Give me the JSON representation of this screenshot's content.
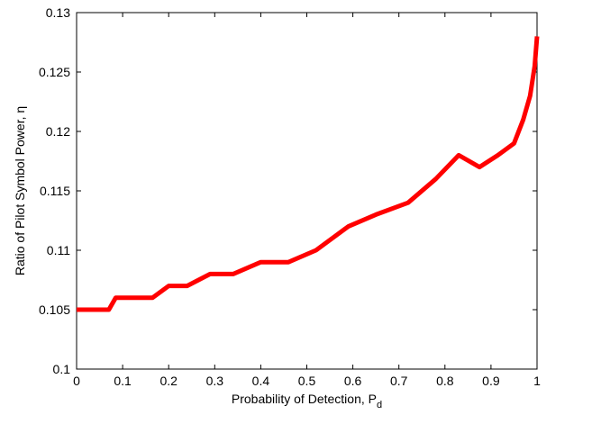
{
  "chart_data": {
    "type": "line",
    "xlabel": "Probability of Detection, P",
    "xlabel_subscript": "d",
    "ylabel": "Ratio of Pilot Symbol Power, η",
    "xlim": [
      0,
      1
    ],
    "ylim": [
      0.1,
      0.13
    ],
    "x_ticks": [
      0,
      0.1,
      0.2,
      0.3,
      0.4,
      0.5,
      0.6,
      0.7,
      0.8,
      0.9,
      1
    ],
    "x_tick_labels": [
      "0",
      "0.1",
      "0.2",
      "0.3",
      "0.4",
      "0.5",
      "0.6",
      "0.7",
      "0.8",
      "0.9",
      "1"
    ],
    "y_ticks": [
      0.1,
      0.105,
      0.11,
      0.115,
      0.12,
      0.125,
      0.13
    ],
    "y_tick_labels": [
      "0.1",
      "0.105",
      "0.11",
      "0.115",
      "0.12",
      "0.125",
      "0.13"
    ],
    "grid": false,
    "legend": null,
    "series": [
      {
        "color": "#ff0000",
        "x": [
          0,
          0.07,
          0.085,
          0.165,
          0.2,
          0.24,
          0.29,
          0.34,
          0.4,
          0.46,
          0.52,
          0.59,
          0.65,
          0.72,
          0.78,
          0.83,
          0.875,
          0.915,
          0.95,
          0.97,
          0.985,
          0.995,
          1.0
        ],
        "y": [
          0.105,
          0.105,
          0.106,
          0.106,
          0.107,
          0.107,
          0.108,
          0.108,
          0.109,
          0.109,
          0.11,
          0.112,
          0.113,
          0.114,
          0.116,
          0.118,
          0.117,
          0.118,
          0.119,
          0.121,
          0.123,
          0.1255,
          0.128
        ]
      }
    ]
  }
}
